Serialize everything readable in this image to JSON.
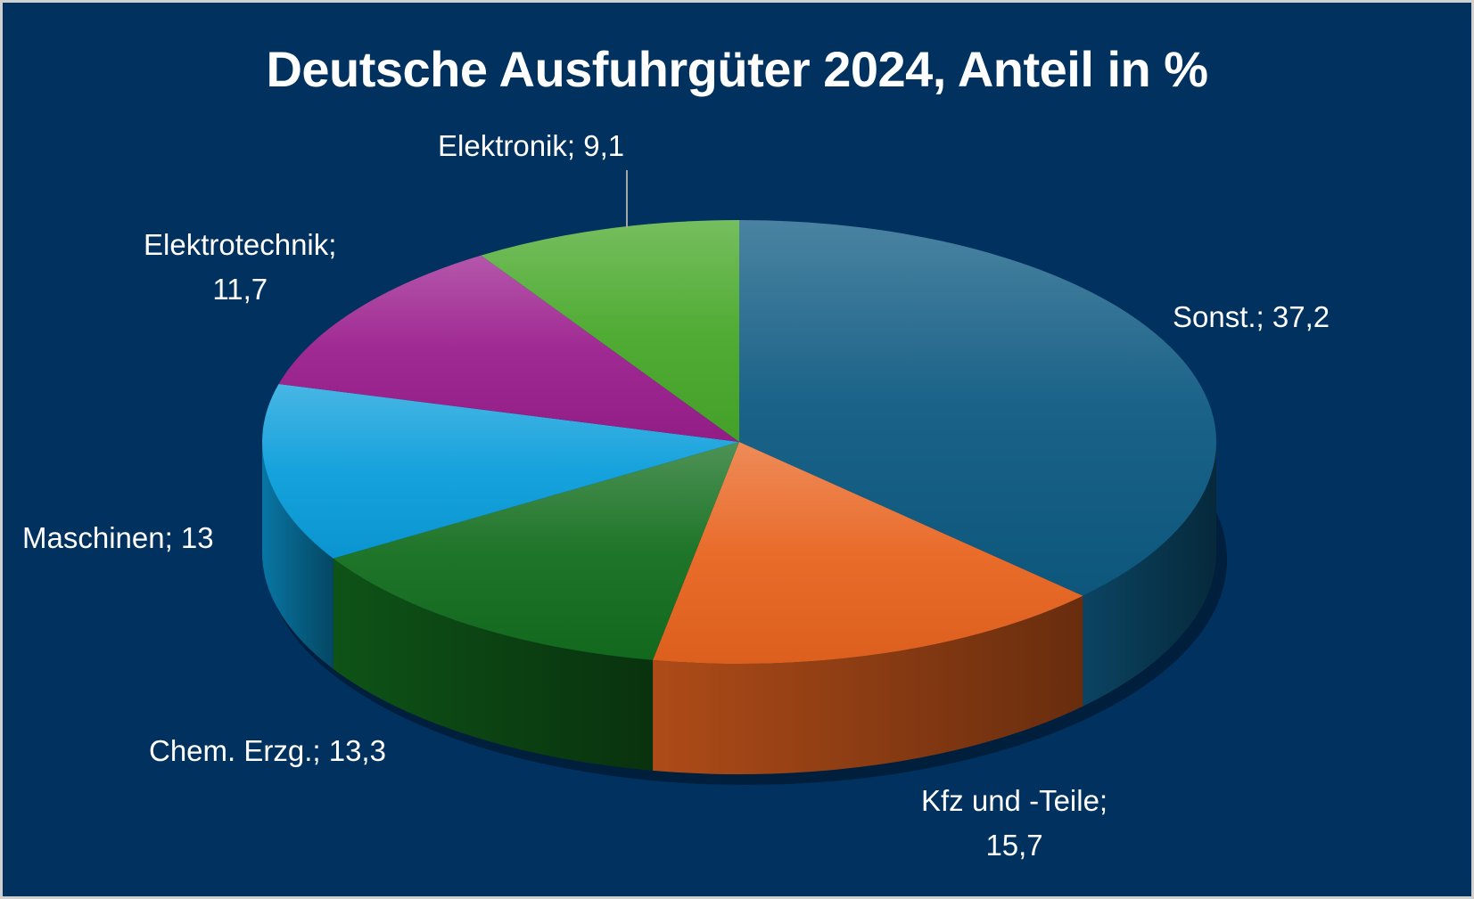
{
  "chart_data": {
    "type": "pie",
    "style": "3d",
    "title": "Deutsche Ausfuhrgüter 2024, Anteil in %",
    "slices": [
      {
        "name": "Sonst.",
        "value": 37.2,
        "label": "Sonst.; 37,2",
        "color": "#0e5a82"
      },
      {
        "name": "Kfz und -Teile",
        "value": 15.7,
        "label": "Kfz und -Teile;\n15,7",
        "label_lines": [
          "Kfz und -Teile;",
          "15,7"
        ],
        "color": "#e86420"
      },
      {
        "name": "Chem. Erzg.",
        "value": 13.3,
        "label": "Chem. Erzg.; 13,3",
        "color": "#136e1e"
      },
      {
        "name": "Maschinen",
        "value": 13,
        "label": "Maschinen; 13",
        "color": "#0a9ddb"
      },
      {
        "name": "Elektrotechnik",
        "value": 11.7,
        "label": "Elektrotechnik;\n11,7",
        "label_lines": [
          "Elektrotechnik;",
          "11,7"
        ],
        "color": "#9b1f8d"
      },
      {
        "name": "Elektronik",
        "value": 9.1,
        "label": "Elektronik; 9,1",
        "color": "#48a82a"
      }
    ],
    "start_angle": "12 o'clock",
    "direction": "clockwise",
    "background": "#01315f"
  }
}
